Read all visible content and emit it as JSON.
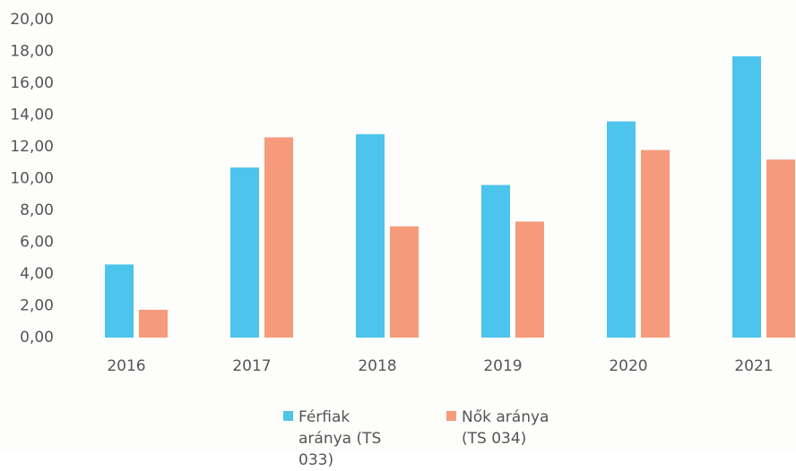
{
  "chart_data": {
    "type": "bar",
    "categories": [
      "2016",
      "2017",
      "2018",
      "2019",
      "2020",
      "2021"
    ],
    "series": [
      {
        "name": "Férfiak aránya (TS 033)",
        "color": "#4dc4ec",
        "values": [
          4.6,
          10.7,
          12.8,
          9.6,
          13.6,
          17.7
        ]
      },
      {
        "name": "Nők aránya (TS 034)",
        "color": "#f59b7c",
        "values": [
          1.75,
          12.6,
          7.0,
          7.3,
          11.8,
          11.2
        ]
      }
    ],
    "ylim": [
      0,
      20
    ],
    "yticks": [
      {
        "value": 0,
        "label": "0,00"
      },
      {
        "value": 2,
        "label": "2,00"
      },
      {
        "value": 4,
        "label": "4,00"
      },
      {
        "value": 6,
        "label": "6,00"
      },
      {
        "value": 8,
        "label": "8,00"
      },
      {
        "value": 10,
        "label": "10,00"
      },
      {
        "value": 12,
        "label": "12,00"
      },
      {
        "value": 14,
        "label": "14,00"
      },
      {
        "value": 16,
        "label": "16,00"
      },
      {
        "value": 18,
        "label": "18,00"
      },
      {
        "value": 20,
        "label": "20,00"
      }
    ],
    "grid": false,
    "legend": "bottom"
  }
}
